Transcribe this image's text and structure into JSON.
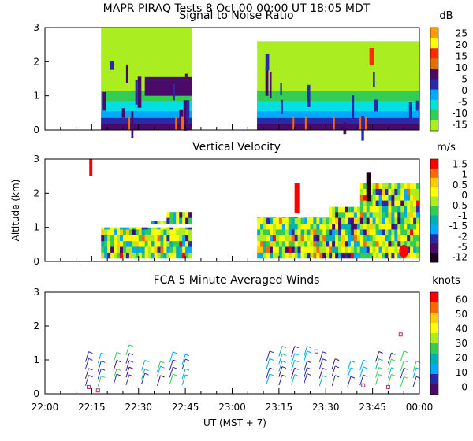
{
  "header": {
    "title": "MAPR PIRAQ Tests   8 Oct 00   00:00 UT   18:05   MDT"
  },
  "chart_data": [
    {
      "type": "heatmap",
      "title": "Signal to Noise Ratio",
      "ylabel": "",
      "ylim": [
        0,
        3
      ],
      "y_ticks": [
        "0",
        "1",
        "2",
        "3"
      ],
      "colorbar": {
        "unit": "dB",
        "labels": [
          "25",
          "20",
          "15",
          "10",
          "5",
          "0",
          "-5",
          "-10",
          "-15"
        ],
        "colors": [
          "#ff9a00",
          "#ffff00",
          "#ff2a00",
          "#e07000",
          "#4a0a6a",
          "#2a2aa8",
          "#00a8ff",
          "#00e0e0",
          "#33cc55",
          "#aaee22"
        ]
      },
      "data_segments_ut": [
        [
          "22:15",
          "22:45"
        ],
        [
          "23:07",
          "00:00"
        ]
      ]
    },
    {
      "type": "heatmap",
      "title": "Vertical Velocity",
      "ylabel": "Altitude (km)",
      "ylim": [
        0,
        3
      ],
      "y_ticks": [
        "0",
        "1",
        "2",
        "3"
      ],
      "colorbar": {
        "unit": "m/s",
        "labels": [
          "1.5",
          "1",
          "0.5",
          "0",
          "-0.5",
          "-1",
          "-1.5",
          "-2",
          "-5",
          "-12"
        ],
        "colors": [
          "#ff0000",
          "#ff6a00",
          "#ffcc00",
          "#ffff00",
          "#aaee22",
          "#33cc55",
          "#00b0b0",
          "#00a8ff",
          "#2a2aa8",
          "#4a0a6a",
          "#1a001a"
        ]
      },
      "data_segments_ut": [
        [
          "22:15",
          "22:45"
        ],
        [
          "23:07",
          "00:00"
        ]
      ]
    },
    {
      "type": "scatter",
      "title": "FCA 5 Minute Averaged Winds",
      "ylabel": "",
      "ylim": [
        0,
        3
      ],
      "y_ticks": [
        "0",
        "1",
        "2",
        "3"
      ],
      "colorbar": {
        "unit": "knots",
        "labels": [
          "60",
          "50",
          "40",
          "30",
          "20",
          "10",
          "0"
        ],
        "colors": [
          "#ff0000",
          "#ff6a00",
          "#ffcc00",
          "#ffff00",
          "#aaee22",
          "#33cc55",
          "#00b0b0",
          "#00a8ff",
          "#2a2aa8",
          "#4a0a6a"
        ]
      }
    }
  ],
  "x_axis": {
    "ticks": [
      "22:00",
      "22:15",
      "22:30",
      "22:45",
      "23:00",
      "23:15",
      "23:30",
      "23:45",
      "00:00"
    ],
    "label": "UT   (MST + 7)",
    "xlim_minutes": [
      0,
      120
    ]
  }
}
